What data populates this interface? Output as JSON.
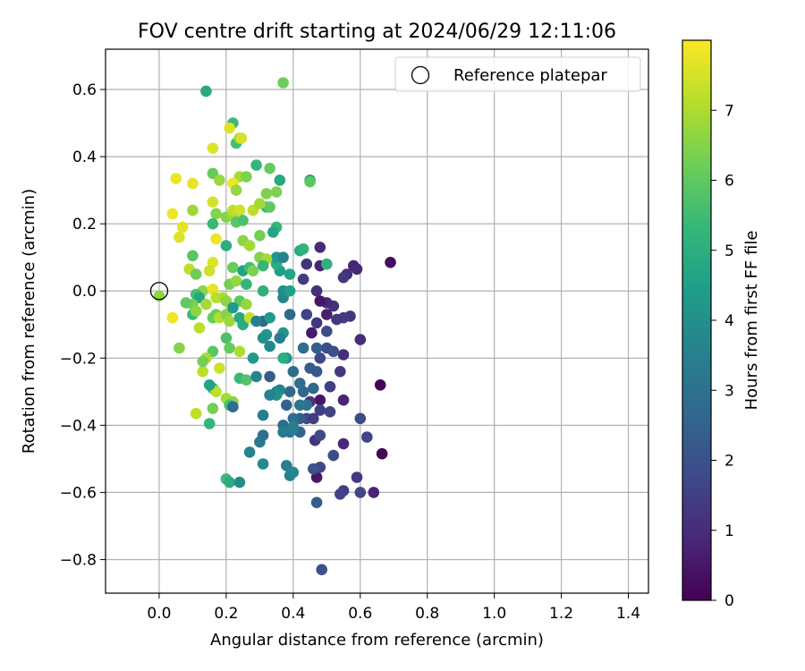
{
  "chart_data": {
    "type": "scatter",
    "title": "FOV centre drift starting at 2024/06/29 12:11:06",
    "xlabel": "Angular distance from reference (arcmin)",
    "ylabel": "Rotation from reference (arcmin)",
    "xlim": [
      -0.16,
      1.46
    ],
    "ylim": [
      -0.9,
      0.72
    ],
    "xticks": [
      0.0,
      0.2,
      0.4,
      0.6,
      0.8,
      1.0,
      1.2,
      1.4
    ],
    "xtick_labels": [
      "0.0",
      "0.2",
      "0.4",
      "0.6",
      "0.8",
      "1.0",
      "1.2",
      "1.4"
    ],
    "yticks": [
      0.6,
      0.4,
      0.2,
      0.0,
      -0.2,
      -0.4,
      -0.6,
      -0.8
    ],
    "ytick_labels": [
      "0.6",
      "0.4",
      "0.2",
      "0.0",
      "−0.2",
      "−0.4",
      "−0.6",
      "−0.8"
    ],
    "grid": true,
    "legend": {
      "placement": "top-right",
      "entries": [
        "Reference platepar"
      ]
    },
    "reference_point": {
      "x": 0.0,
      "y": 0.0,
      "marker": "open-circle"
    },
    "colorbar": {
      "label": "Hours from first FF file",
      "colormap": "viridis",
      "range": [
        0,
        8
      ],
      "ticks": [
        0,
        1,
        2,
        3,
        4,
        5,
        6,
        7
      ],
      "tick_labels": [
        "0",
        "1",
        "2",
        "3",
        "4",
        "5",
        "6",
        "7"
      ]
    },
    "colormap_stops": [
      "#440154",
      "#482878",
      "#3e4a89",
      "#31688e",
      "#26828e",
      "#1f9e89",
      "#35b779",
      "#6ece58",
      "#b5de2b",
      "#fde725"
    ],
    "points": [
      [
        0.69,
        0.085,
        0.3
      ],
      [
        0.58,
        0.075,
        0.8
      ],
      [
        0.59,
        0.065,
        0.9
      ],
      [
        0.56,
        0.05,
        1.0
      ],
      [
        0.55,
        0.04,
        1.3
      ],
      [
        0.66,
        -0.28,
        0.1
      ],
      [
        0.665,
        -0.485,
        0.1
      ],
      [
        0.64,
        -0.6,
        0.8
      ],
      [
        0.62,
        -0.435,
        1.6
      ],
      [
        0.6,
        -0.38,
        1.8
      ],
      [
        0.6,
        -0.6,
        1.7
      ],
      [
        0.59,
        -0.555,
        1.3
      ],
      [
        0.6,
        -0.145,
        1.0
      ],
      [
        0.57,
        -0.075,
        1.2
      ],
      [
        0.55,
        -0.08,
        1.4
      ],
      [
        0.53,
        -0.085,
        1.3
      ],
      [
        0.52,
        -0.045,
        1.1
      ],
      [
        0.5,
        -0.035,
        0.9
      ],
      [
        0.5,
        -0.07,
        0.7
      ],
      [
        0.48,
        -0.03,
        0.5
      ],
      [
        0.47,
        0.0,
        1.1
      ],
      [
        0.48,
        0.075,
        0.8
      ],
      [
        0.48,
        0.13,
        1.0
      ],
      [
        0.44,
        0.08,
        1.2
      ],
      [
        0.43,
        0.035,
        1.4
      ],
      [
        0.55,
        -0.19,
        1.1
      ],
      [
        0.54,
        -0.24,
        1.3
      ],
      [
        0.52,
        -0.18,
        1.9
      ],
      [
        0.51,
        -0.285,
        1.5
      ],
      [
        0.51,
        -0.36,
        1.6
      ],
      [
        0.55,
        -0.325,
        0.8
      ],
      [
        0.55,
        -0.455,
        0.9
      ],
      [
        0.52,
        -0.49,
        1.8
      ],
      [
        0.55,
        -0.595,
        1.4
      ],
      [
        0.54,
        -0.605,
        1.6
      ],
      [
        0.47,
        -0.555,
        0.5
      ],
      [
        0.48,
        -0.525,
        1.7
      ],
      [
        0.46,
        -0.53,
        2.0
      ],
      [
        0.47,
        -0.63,
        2.3
      ],
      [
        0.485,
        -0.83,
        2.0
      ],
      [
        0.465,
        -0.445,
        1.2
      ],
      [
        0.48,
        -0.43,
        1.8
      ],
      [
        0.48,
        -0.325,
        0.5
      ],
      [
        0.48,
        -0.355,
        1.5
      ],
      [
        0.44,
        -0.38,
        1.8
      ],
      [
        0.46,
        -0.38,
        1.4
      ],
      [
        0.45,
        -0.23,
        2.3
      ],
      [
        0.47,
        -0.24,
        2.2
      ],
      [
        0.48,
        -0.2,
        1.7
      ],
      [
        0.47,
        -0.17,
        2.4
      ],
      [
        0.5,
        -0.17,
        1.9
      ],
      [
        0.5,
        -0.12,
        1.8
      ],
      [
        0.47,
        -0.095,
        1.3
      ],
      [
        0.44,
        -0.07,
        1.6
      ],
      [
        0.455,
        -0.125,
        0.6
      ],
      [
        0.45,
        -0.33,
        1.2
      ],
      [
        0.46,
        -0.29,
        2.7
      ],
      [
        0.43,
        -0.3,
        2.6
      ],
      [
        0.42,
        -0.38,
        2.3
      ],
      [
        0.42,
        -0.42,
        2.6
      ],
      [
        0.4,
        -0.38,
        2.9
      ],
      [
        0.39,
        -0.42,
        3.2
      ],
      [
        0.4,
        -0.41,
        3.4
      ],
      [
        0.37,
        -0.4,
        2.9
      ],
      [
        0.37,
        -0.42,
        3.3
      ],
      [
        0.38,
        -0.34,
        2.5
      ],
      [
        0.39,
        -0.3,
        2.7
      ],
      [
        0.42,
        -0.275,
        2.8
      ],
      [
        0.4,
        -0.24,
        2.9
      ],
      [
        0.43,
        -0.17,
        2.9
      ],
      [
        0.44,
        -0.34,
        3.0
      ],
      [
        0.42,
        -0.34,
        3.1
      ],
      [
        0.36,
        -0.295,
        3.5
      ],
      [
        0.35,
        -0.3,
        3.7
      ],
      [
        0.35,
        -0.31,
        4.0
      ],
      [
        0.33,
        -0.255,
        2.3
      ],
      [
        0.33,
        -0.31,
        3.6
      ],
      [
        0.31,
        -0.37,
        3.4
      ],
      [
        0.3,
        -0.45,
        3.3
      ],
      [
        0.31,
        -0.43,
        3.0
      ],
      [
        0.27,
        -0.48,
        3.6
      ],
      [
        0.31,
        -0.515,
        3.8
      ],
      [
        0.38,
        -0.52,
        3.4
      ],
      [
        0.39,
        -0.55,
        3.5
      ],
      [
        0.4,
        -0.54,
        3.7
      ],
      [
        0.4,
        -0.405,
        3.4
      ],
      [
        0.38,
        -0.2,
        4.1
      ],
      [
        0.37,
        -0.2,
        5.0
      ],
      [
        0.33,
        -0.165,
        3.7
      ],
      [
        0.31,
        -0.09,
        2.6
      ],
      [
        0.32,
        -0.13,
        4.3
      ],
      [
        0.33,
        -0.08,
        4.4
      ],
      [
        0.37,
        -0.125,
        4.2
      ],
      [
        0.36,
        -0.14,
        3.5
      ],
      [
        0.39,
        -0.07,
        2.7
      ],
      [
        0.37,
        -0.02,
        3.6
      ],
      [
        0.37,
        0.0,
        3.9
      ],
      [
        0.39,
        0.0,
        4.5
      ],
      [
        0.39,
        0.05,
        4.7
      ],
      [
        0.36,
        0.06,
        4.5
      ],
      [
        0.35,
        0.08,
        4.9
      ],
      [
        0.35,
        0.1,
        4.3
      ],
      [
        0.37,
        0.1,
        3.6
      ],
      [
        0.42,
        0.12,
        4.8
      ],
      [
        0.43,
        0.125,
        5.2
      ],
      [
        0.5,
        0.08,
        5.1
      ],
      [
        0.45,
        0.33,
        4.0
      ],
      [
        0.45,
        0.325,
        5.9
      ],
      [
        0.36,
        0.33,
        4.8
      ],
      [
        0.35,
        0.19,
        5.3
      ],
      [
        0.34,
        0.175,
        4.7
      ],
      [
        0.32,
        0.25,
        5.4
      ],
      [
        0.33,
        0.25,
        6.0
      ],
      [
        0.35,
        0.295,
        6.4
      ],
      [
        0.32,
        0.29,
        6.4
      ],
      [
        0.33,
        0.365,
        6.1
      ],
      [
        0.29,
        0.375,
        5.3
      ],
      [
        0.37,
        0.62,
        6.2
      ],
      [
        0.14,
        0.595,
        4.8
      ],
      [
        0.22,
        0.5,
        5.4
      ],
      [
        0.23,
        0.44,
        5.6
      ],
      [
        0.24,
        0.455,
        6.8
      ],
      [
        0.245,
        0.455,
        7.5
      ],
      [
        0.21,
        0.485,
        7.6
      ],
      [
        0.16,
        0.425,
        7.6
      ],
      [
        0.16,
        0.35,
        6.1
      ],
      [
        0.18,
        0.33,
        6.8
      ],
      [
        0.24,
        0.34,
        6.9
      ],
      [
        0.22,
        0.32,
        7.8
      ],
      [
        0.23,
        0.3,
        6.7
      ],
      [
        0.05,
        0.335,
        7.8
      ],
      [
        0.1,
        0.32,
        7.7
      ],
      [
        0.1,
        0.24,
        6.8
      ],
      [
        0.04,
        0.23,
        7.8
      ],
      [
        0.07,
        0.19,
        7.7
      ],
      [
        0.06,
        0.16,
        7.6
      ],
      [
        0.16,
        0.265,
        7.5
      ],
      [
        0.17,
        0.23,
        6.5
      ],
      [
        0.16,
        0.2,
        5.4
      ],
      [
        0.2,
        0.22,
        6.5
      ],
      [
        0.22,
        0.225,
        6.8
      ],
      [
        0.22,
        0.24,
        7.2
      ],
      [
        0.24,
        0.24,
        7.4
      ],
      [
        0.23,
        0.205,
        5.9
      ],
      [
        0.25,
        0.21,
        5.7
      ],
      [
        0.28,
        0.24,
        7.2
      ],
      [
        0.3,
        0.26,
        6.9
      ],
      [
        0.3,
        0.165,
        6.3
      ],
      [
        0.25,
        0.15,
        6.6
      ],
      [
        0.27,
        0.135,
        6.9
      ],
      [
        0.2,
        0.135,
        5.0
      ],
      [
        0.17,
        0.155,
        7.8
      ],
      [
        0.16,
        0.085,
        7.6
      ],
      [
        0.15,
        0.06,
        7.4
      ],
      [
        0.1,
        0.105,
        5.9
      ],
      [
        0.09,
        0.065,
        7.2
      ],
      [
        0.11,
        0.05,
        6.2
      ],
      [
        0.13,
        0.0,
        6.6
      ],
      [
        0.11,
        -0.01,
        5.6
      ],
      [
        0.12,
        -0.02,
        4.7
      ],
      [
        0.1,
        -0.04,
        6.3
      ],
      [
        0.08,
        -0.035,
        6.0
      ],
      [
        0.0,
        -0.015,
        6.6
      ],
      [
        0.04,
        -0.08,
        7.8
      ],
      [
        0.06,
        -0.17,
        6.5
      ],
      [
        0.1,
        -0.07,
        5.4
      ],
      [
        0.11,
        -0.06,
        6.6
      ],
      [
        0.12,
        -0.11,
        7.2
      ],
      [
        0.14,
        -0.04,
        6.9
      ],
      [
        0.16,
        0.005,
        7.7
      ],
      [
        0.17,
        -0.02,
        7.2
      ],
      [
        0.19,
        -0.02,
        7.0
      ],
      [
        0.2,
        -0.03,
        6.6
      ],
      [
        0.17,
        -0.07,
        6.2
      ],
      [
        0.16,
        -0.08,
        6.1
      ],
      [
        0.18,
        -0.08,
        7.1
      ],
      [
        0.2,
        -0.07,
        6.5
      ],
      [
        0.21,
        -0.09,
        6.8
      ],
      [
        0.22,
        0.07,
        6.1
      ],
      [
        0.21,
        0.02,
        6.3
      ],
      [
        0.23,
        0.03,
        6.7
      ],
      [
        0.25,
        0.06,
        4.6
      ],
      [
        0.26,
        0.02,
        5.3
      ],
      [
        0.24,
        -0.03,
        5.9
      ],
      [
        0.26,
        -0.04,
        6.7
      ],
      [
        0.24,
        -0.08,
        4.8
      ],
      [
        0.25,
        -0.1,
        4.9
      ],
      [
        0.27,
        -0.08,
        7.3
      ],
      [
        0.22,
        -0.05,
        4.3
      ],
      [
        0.2,
        -0.14,
        5.7
      ],
      [
        0.21,
        -0.17,
        6.1
      ],
      [
        0.16,
        -0.18,
        5.9
      ],
      [
        0.14,
        -0.2,
        7.0
      ],
      [
        0.13,
        -0.24,
        7.2
      ],
      [
        0.13,
        -0.21,
        6.3
      ],
      [
        0.16,
        -0.29,
        5.2
      ],
      [
        0.17,
        -0.3,
        7.2
      ],
      [
        0.16,
        -0.35,
        6.3
      ],
      [
        0.15,
        -0.395,
        5.3
      ],
      [
        0.15,
        -0.28,
        4.6
      ],
      [
        0.18,
        -0.23,
        7.4
      ],
      [
        0.2,
        -0.32,
        6.9
      ],
      [
        0.22,
        -0.33,
        6.6
      ],
      [
        0.21,
        -0.34,
        5.6
      ],
      [
        0.22,
        -0.345,
        2.8
      ],
      [
        0.24,
        -0.26,
        5.4
      ],
      [
        0.26,
        -0.265,
        5.8
      ],
      [
        0.24,
        -0.18,
        7.0
      ],
      [
        0.28,
        -0.2,
        4.3
      ],
      [
        0.29,
        -0.255,
        3.6
      ],
      [
        0.11,
        -0.365,
        7.2
      ],
      [
        0.2,
        -0.56,
        5.4
      ],
      [
        0.21,
        -0.57,
        4.9
      ],
      [
        0.24,
        -0.57,
        3.9
      ],
      [
        0.26,
        0.34,
        6.4
      ],
      [
        0.27,
        0.07,
        5.5
      ],
      [
        0.28,
        0.06,
        6.4
      ],
      [
        0.3,
        0.1,
        6.5
      ],
      [
        0.32,
        0.095,
        6.9
      ],
      [
        0.31,
        0.075,
        5.3
      ],
      [
        0.31,
        -0.0,
        5.1
      ],
      [
        0.29,
        -0.09,
        3.5
      ],
      [
        0.31,
        -0.14,
        4.1
      ]
    ]
  }
}
